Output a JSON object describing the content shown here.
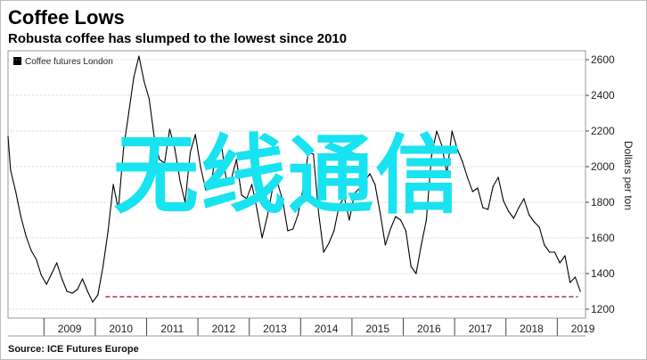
{
  "header": {
    "title": "Coffee Lows",
    "subtitle": "Robusta coffee has slumped to the lowest since 2010"
  },
  "footer": {
    "source": "Source: ICE Futures Europe"
  },
  "watermark": {
    "text": "无线通信",
    "color": "#19e3f0"
  },
  "colors": {
    "line": "#000000",
    "reference_line": "#a0306e",
    "grid": "#b0b0b0",
    "panel_border": "#bdbdbd"
  },
  "chart_data": {
    "type": "line",
    "legend": {
      "placement": "top-left"
    },
    "x_tick_labels": [
      "2009",
      "2010",
      "2011",
      "2012",
      "2013",
      "2014",
      "2015",
      "2016",
      "2017",
      "2018",
      "2019"
    ],
    "xlim": [
      2008.3,
      2019.55
    ],
    "ylabel": "Dollars per ton",
    "y_ticks": [
      1200,
      1400,
      1600,
      1800,
      2000,
      2200,
      2400,
      2600
    ],
    "ylim": [
      1150,
      2650
    ],
    "grid": "horizontal dotted",
    "series": [
      {
        "name": "Coffee futures London",
        "x": [
          2008.3,
          2008.35,
          2008.45,
          2008.55,
          2008.65,
          2008.75,
          2008.85,
          2008.95,
          2009.05,
          2009.15,
          2009.25,
          2009.35,
          2009.45,
          2009.55,
          2009.65,
          2009.75,
          2009.85,
          2009.95,
          2010.05,
          2010.15,
          2010.25,
          2010.35,
          2010.45,
          2010.55,
          2010.65,
          2010.75,
          2010.85,
          2010.95,
          2011.05,
          2011.15,
          2011.25,
          2011.35,
          2011.45,
          2011.55,
          2011.65,
          2011.75,
          2011.85,
          2011.95,
          2012.05,
          2012.15,
          2012.25,
          2012.35,
          2012.45,
          2012.55,
          2012.65,
          2012.75,
          2012.85,
          2012.95,
          2013.05,
          2013.15,
          2013.25,
          2013.35,
          2013.45,
          2013.55,
          2013.65,
          2013.75,
          2013.85,
          2013.95,
          2014.05,
          2014.15,
          2014.25,
          2014.35,
          2014.45,
          2014.55,
          2014.65,
          2014.75,
          2014.85,
          2014.95,
          2015.05,
          2015.15,
          2015.25,
          2015.35,
          2015.45,
          2015.55,
          2015.65,
          2015.75,
          2015.85,
          2015.95,
          2016.05,
          2016.15,
          2016.25,
          2016.35,
          2016.45,
          2016.55,
          2016.65,
          2016.75,
          2016.85,
          2016.95,
          2017.05,
          2017.15,
          2017.25,
          2017.35,
          2017.45,
          2017.55,
          2017.65,
          2017.75,
          2017.85,
          2017.95,
          2018.05,
          2018.15,
          2018.25,
          2018.35,
          2018.45,
          2018.55,
          2018.65,
          2018.75,
          2018.85,
          2018.95,
          2019.05,
          2019.15,
          2019.25,
          2019.35,
          2019.45
        ],
        "values": [
          2170,
          1980,
          1860,
          1720,
          1610,
          1530,
          1480,
          1390,
          1340,
          1400,
          1460,
          1370,
          1300,
          1290,
          1310,
          1370,
          1300,
          1240,
          1280,
          1440,
          1640,
          1900,
          1760,
          2100,
          2300,
          2500,
          2620,
          2480,
          2380,
          2160,
          2040,
          2020,
          2210,
          2100,
          1920,
          1800,
          2080,
          2180,
          2000,
          1870,
          1890,
          2080,
          2140,
          1930,
          1930,
          2040,
          1840,
          1820,
          1900,
          1760,
          1600,
          1720,
          1870,
          1910,
          1810,
          1640,
          1650,
          1730,
          1880,
          2080,
          2070,
          1740,
          1520,
          1570,
          1640,
          1780,
          1830,
          1700,
          1850,
          1880,
          1920,
          1960,
          1900,
          1740,
          1560,
          1650,
          1720,
          1700,
          1640,
          1440,
          1400,
          1560,
          1700,
          2060,
          2200,
          2120,
          1960,
          2200,
          2100,
          2030,
          1940,
          1860,
          1880,
          1770,
          1760,
          1890,
          1940,
          1810,
          1750,
          1710,
          1770,
          1820,
          1730,
          1690,
          1660,
          1560,
          1520,
          1520,
          1460,
          1500,
          1350,
          1380,
          1300
        ]
      },
      {
        "name": "",
        "style": "dashed reference",
        "x": [
          2010.2,
          2019.4
        ],
        "values": [
          1270,
          1270
        ]
      }
    ]
  }
}
